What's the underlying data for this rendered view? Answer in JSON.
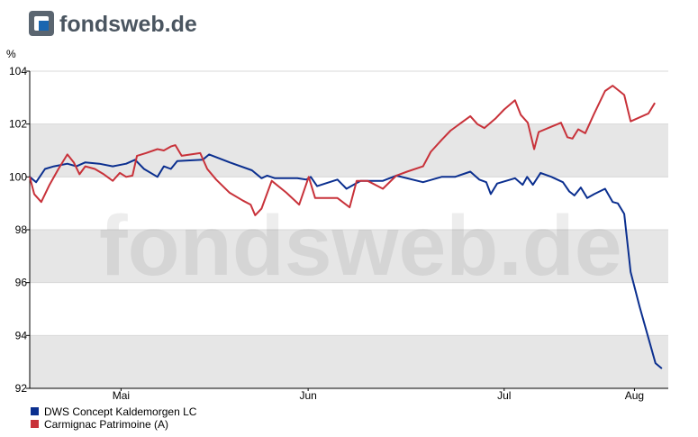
{
  "logo": "fondsweb.de",
  "chart_data": {
    "type": "line",
    "y_label": "%",
    "xlim": [
      0,
      100
    ],
    "xticks": [
      {
        "value": 14.3,
        "label": "Mai"
      },
      {
        "value": 43.6,
        "label": "Jun"
      },
      {
        "value": 74.3,
        "label": "Jul"
      },
      {
        "value": 94.7,
        "label": "Aug"
      }
    ],
    "ylim": [
      92,
      104
    ],
    "yticks": [
      92,
      94,
      96,
      98,
      100,
      102,
      104
    ],
    "grid": true,
    "legend": "bottom-left",
    "series": [
      {
        "name": "DWS Concept Kaldemorgen LC",
        "color": "#0b2f8f",
        "x": [
          0,
          1.0,
          2.4,
          3.8,
          5.9,
          7.3,
          8.7,
          10.9,
          13.0,
          15.1,
          16.5,
          17.9,
          20.0,
          21.0,
          22.1,
          23.1,
          27.1,
          28.1,
          31.3,
          34.8,
          36.3,
          37.2,
          38.4,
          41.9,
          43.3,
          44.0,
          45.0,
          48.2,
          49.6,
          51.8,
          55.3,
          57.4,
          61.6,
          64.5,
          66.6,
          69.0,
          70.4,
          71.5,
          72.2,
          73.2,
          76.0,
          77.2,
          77.9,
          78.8,
          80.0,
          81.7,
          83.5,
          84.5,
          85.3,
          86.3,
          87.3,
          88.4,
          90.1,
          91.3,
          92.1,
          93.1,
          94.1,
          95.5,
          96.9,
          98.0,
          99.0
        ],
        "values": [
          100.0,
          99.8,
          100.3,
          100.4,
          100.5,
          100.4,
          100.55,
          100.5,
          100.4,
          100.5,
          100.65,
          100.3,
          100.0,
          100.4,
          100.3,
          100.6,
          100.65,
          100.85,
          100.55,
          100.25,
          99.95,
          100.05,
          99.95,
          99.95,
          99.9,
          100.0,
          99.65,
          99.9,
          99.55,
          99.85,
          99.85,
          100.05,
          99.8,
          100.0,
          100.0,
          100.2,
          99.9,
          99.8,
          99.35,
          99.75,
          99.95,
          99.7,
          100.0,
          99.7,
          100.15,
          100.0,
          99.8,
          99.45,
          99.3,
          99.6,
          99.2,
          99.35,
          99.55,
          99.05,
          99.0,
          98.6,
          96.4,
          95.1,
          93.9,
          92.95,
          92.75
        ]
      },
      {
        "name": "Carmignac Patrimoine (A)",
        "color": "#c8323a",
        "x": [
          0,
          0.7,
          1.8,
          3.1,
          4.5,
          5.9,
          6.9,
          7.8,
          8.7,
          10.2,
          11.6,
          13.0,
          14.1,
          15.1,
          16.1,
          16.8,
          18.2,
          20.0,
          21.0,
          22.1,
          22.8,
          23.8,
          26.7,
          27.8,
          29.2,
          31.3,
          33.4,
          34.6,
          35.3,
          36.3,
          37.9,
          40.2,
          42.2,
          43.7,
          44.7,
          48.2,
          50.1,
          51.2,
          52.9,
          55.3,
          57.4,
          59.1,
          61.6,
          62.8,
          64.5,
          65.9,
          69.0,
          70.1,
          71.2,
          72.9,
          74.3,
          76.0,
          76.9,
          78.0,
          79.0,
          79.7,
          81.7,
          83.2,
          84.2,
          85.0,
          85.9,
          87.0,
          88.4,
          90.1,
          91.3,
          93.1,
          94.1,
          96.9,
          97.9
        ],
        "values": [
          100.0,
          99.35,
          99.05,
          99.7,
          100.3,
          100.85,
          100.55,
          100.1,
          100.4,
          100.3,
          100.1,
          99.85,
          100.15,
          100.0,
          100.05,
          100.8,
          100.9,
          101.05,
          101.0,
          101.15,
          101.2,
          100.8,
          100.9,
          100.3,
          99.9,
          99.4,
          99.1,
          98.95,
          98.55,
          98.8,
          99.85,
          99.4,
          98.95,
          100.0,
          99.2,
          99.2,
          98.85,
          99.85,
          99.85,
          99.55,
          100.05,
          100.2,
          100.4,
          100.95,
          101.4,
          101.75,
          102.3,
          102.0,
          101.85,
          102.2,
          102.55,
          102.9,
          102.35,
          102.05,
          101.05,
          101.7,
          101.9,
          102.05,
          101.5,
          101.45,
          101.8,
          101.65,
          102.4,
          103.25,
          103.45,
          103.1,
          102.1,
          102.4,
          102.8
        ]
      }
    ]
  }
}
